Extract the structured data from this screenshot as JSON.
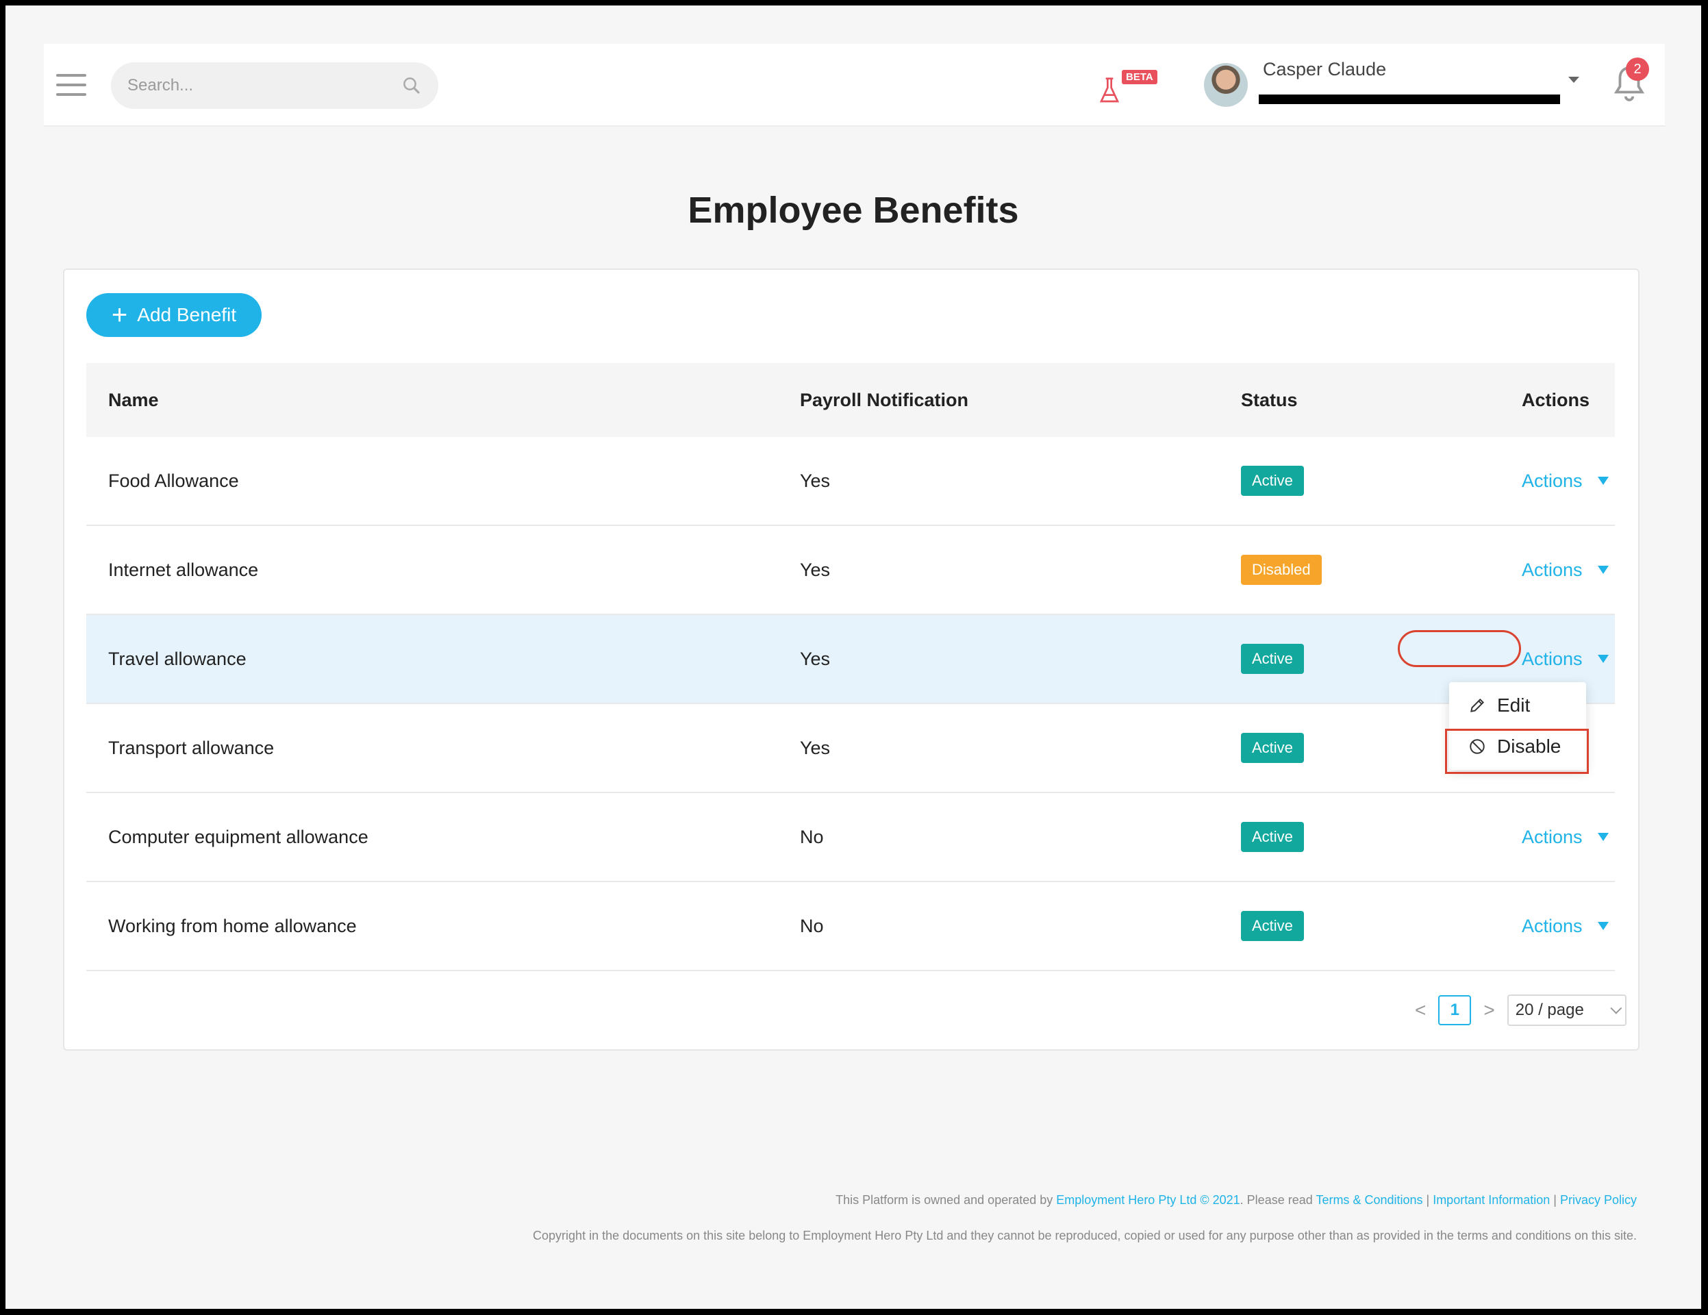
{
  "header": {
    "search_placeholder": "Search...",
    "beta_label": "BETA",
    "user_name": "Casper Claude",
    "notification_count": "2"
  },
  "page_title": "Employee Benefits",
  "add_button_label": "Add Benefit",
  "table": {
    "columns": [
      "Name",
      "Payroll Notification",
      "Status",
      "Actions"
    ],
    "rows": [
      {
        "name": "Food Allowance",
        "payroll": "Yes",
        "status": "Active",
        "action": "Actions"
      },
      {
        "name": "Internet allowance",
        "payroll": "Yes",
        "status": "Disabled",
        "action": "Actions"
      },
      {
        "name": "Travel allowance",
        "payroll": "Yes",
        "status": "Active",
        "action": "Actions"
      },
      {
        "name": "Transport allowance",
        "payroll": "Yes",
        "status": "Active",
        "action": "Actions"
      },
      {
        "name": "Computer equipment allowance",
        "payroll": "No",
        "status": "Active",
        "action": "Actions"
      },
      {
        "name": "Working from home allowance",
        "payroll": "No",
        "status": "Active",
        "action": "Actions"
      }
    ]
  },
  "dropdown": {
    "edit": "Edit",
    "disable": "Disable"
  },
  "pagination": {
    "prev": "<",
    "page": "1",
    "next": ">",
    "page_size": "20 / page"
  },
  "footer": {
    "owned_prefix": "This Platform is owned and operated by",
    "company": "Employment Hero Pty Ltd © 2021",
    "please_read": ". Please read",
    "terms": "Terms & Conditions",
    "sep1": " | ",
    "important": "Important Information",
    "sep2": " | ",
    "privacy": "Privacy Policy",
    "copyright": "Copyright in the documents on this site belong to Employment Hero Pty Ltd and they cannot be reproduced, copied or used for any purpose other than as provided in the terms and conditions on this site."
  },
  "colors": {
    "accent": "#1fb3e8",
    "active": "#13a89e",
    "disabled": "#f7a52a",
    "highlight_row": "#e6f3fc",
    "annotation": "#d9432f"
  }
}
